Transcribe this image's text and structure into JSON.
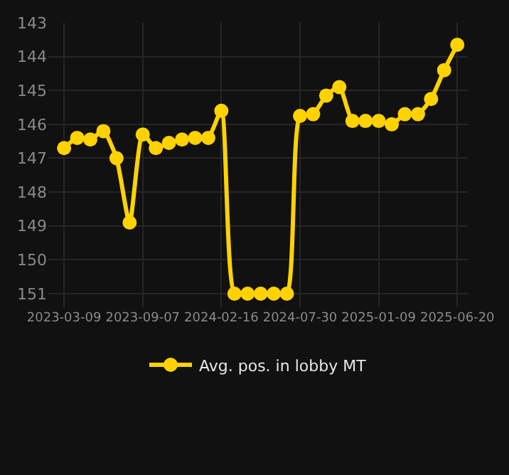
{
  "chart_data": {
    "type": "line",
    "categories": [
      "2023-03-09",
      null,
      null,
      null,
      null,
      null,
      "2023-09-07",
      null,
      null,
      null,
      null,
      null,
      "2024-02-16",
      null,
      null,
      null,
      null,
      null,
      "2024-07-30",
      null,
      null,
      null,
      null,
      null,
      "2025-01-09",
      null,
      null,
      null,
      null,
      null,
      "2025-06-20"
    ],
    "series": [
      {
        "name": "Avg. pos. in lobby MT",
        "color": "#ffd200",
        "values": [
          146.7,
          146.4,
          146.45,
          146.2,
          147.0,
          148.9,
          146.3,
          146.7,
          146.55,
          146.45,
          146.4,
          146.4,
          145.6,
          151,
          151,
          151,
          151,
          151,
          145.75,
          145.7,
          145.15,
          144.9,
          145.9,
          145.9,
          145.9,
          146.0,
          145.7,
          145.7,
          145.25,
          144.4,
          143.65
        ]
      }
    ],
    "ylim": [
      151.4,
      143
    ],
    "yticks": [
      143,
      144,
      145,
      146,
      147,
      148,
      149,
      150,
      151
    ],
    "grid": true,
    "legend": "bottom",
    "marker": "circle",
    "line_style": "solid"
  }
}
